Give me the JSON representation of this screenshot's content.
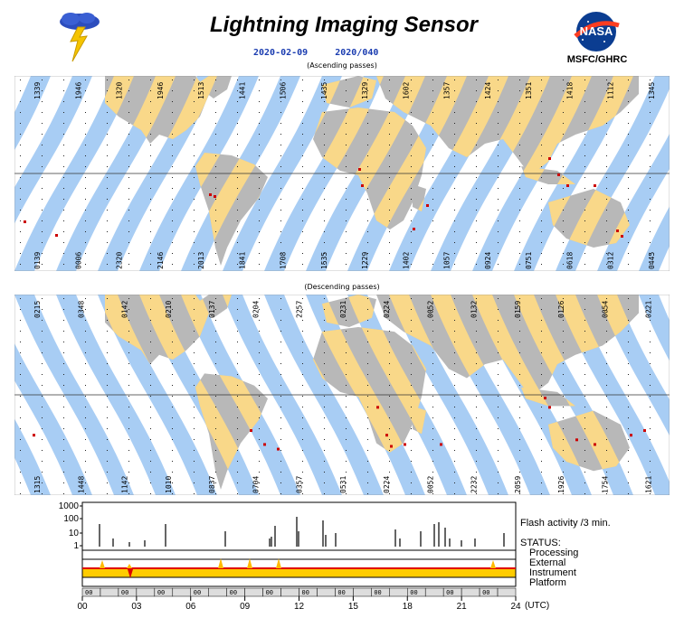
{
  "header": {
    "title": "Lightning Imaging Sensor",
    "date": "2020-02-09",
    "day_of_year": "2020/040",
    "org": "MSFC/GHRC",
    "nasa_logo_text": "NASA"
  },
  "ascending": {
    "caption": "(Ascending passes)",
    "top_times": [
      "1339",
      "1946",
      "1320",
      "1946",
      "1513",
      "1441",
      "1506",
      "1435",
      "1329",
      "1602",
      "1357",
      "1424",
      "1351",
      "1418",
      "1112",
      "1345"
    ],
    "bottom_times": [
      "0139",
      "0006",
      "2320",
      "2146",
      "2013",
      "1841",
      "1708",
      "1535",
      "1229",
      "1402",
      "1057",
      "0924",
      "0751",
      "0618",
      "0312",
      "0445"
    ]
  },
  "descending": {
    "caption": "(Descending passes)",
    "top_times": [
      "0215",
      "0348",
      "0142",
      "0210",
      "0137",
      "0204",
      "2257",
      "0231",
      "0224",
      "0052",
      "0132",
      "0159",
      "0126",
      "0054",
      "0221"
    ],
    "bottom_times": [
      "1315",
      "1448",
      "1142",
      "1010",
      "0837",
      "0704",
      "0357",
      "0531",
      "0224",
      "0052",
      "2232",
      "2059",
      "1926",
      "1754",
      "1621"
    ]
  },
  "activity": {
    "y_ticks": [
      "1000",
      "100",
      "10",
      "1"
    ],
    "flash_label": "Flash activity /3 min.",
    "status_title": "STATUS:",
    "status_items": [
      "Processing",
      "External",
      "Instrument",
      "Platform"
    ],
    "hour_labels": [
      "00",
      "03",
      "06",
      "09",
      "12",
      "15",
      "18",
      "21",
      "24"
    ],
    "utc_label": "(UTC)",
    "cell_label": "00"
  },
  "colors": {
    "land": "#f9d889",
    "land_dark": "#b8b8b8",
    "swath": "#a8cdf4",
    "flash": "#cc0000",
    "bar_red": "#e00000",
    "bar_yellow": "#ffcc00"
  }
}
